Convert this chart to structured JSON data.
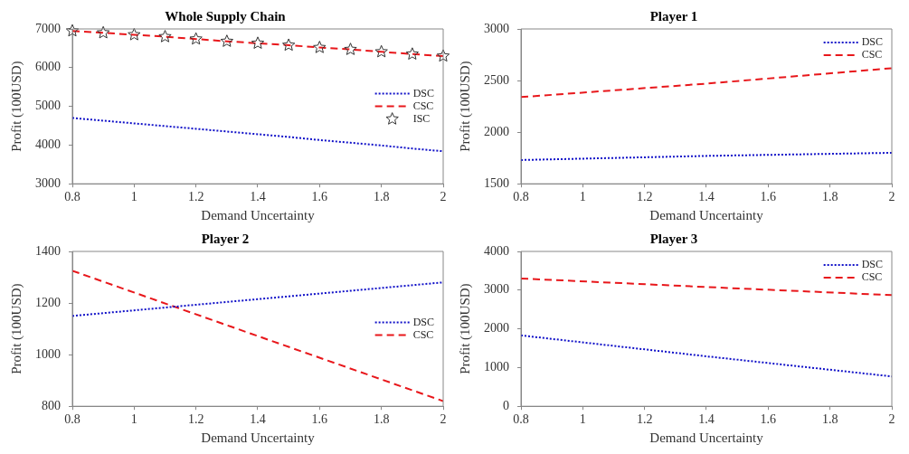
{
  "chart_data": [
    {
      "type": "line",
      "title": "Whole Supply Chain",
      "xlabel": "Demand Uncertainty",
      "ylabel": "Profit (100USD)",
      "x": [
        0.8,
        0.9,
        1.0,
        1.1,
        1.2,
        1.3,
        1.4,
        1.5,
        1.6,
        1.7,
        1.8,
        1.9,
        2.0
      ],
      "xlim": [
        0.8,
        2
      ],
      "xticks": [
        0.8,
        1,
        1.2,
        1.4,
        1.6,
        1.8,
        2
      ],
      "ylim": [
        3000,
        7000
      ],
      "yticks": [
        3000,
        4000,
        5000,
        6000,
        7000
      ],
      "legend": "right",
      "grid": false,
      "series": [
        {
          "name": "DSC",
          "color": "#1010c8",
          "line_style": "dotted",
          "marker": "none",
          "values": [
            4700,
            4630,
            4560,
            4490,
            4420,
            4350,
            4280,
            4210,
            4130,
            4060,
            3990,
            3910,
            3840
          ]
        },
        {
          "name": "CSC",
          "color": "#e8171b",
          "line_style": "dashed",
          "marker": "none",
          "values": [
            6950,
            6900,
            6850,
            6800,
            6740,
            6680,
            6630,
            6580,
            6520,
            6470,
            6410,
            6350,
            6300
          ]
        },
        {
          "name": "ISC",
          "type": "scatter",
          "color": "#333333",
          "marker": "star",
          "values": [
            6950,
            6900,
            6850,
            6800,
            6740,
            6680,
            6630,
            6580,
            6520,
            6470,
            6410,
            6350,
            6300
          ]
        }
      ]
    },
    {
      "type": "line",
      "title": "Player 1",
      "xlabel": "Demand Uncertainty",
      "ylabel": "Profit (100USD)",
      "x": [
        0.8,
        1.4,
        2.0
      ],
      "xlim": [
        0.8,
        2
      ],
      "xticks": [
        0.8,
        1,
        1.2,
        1.4,
        1.6,
        1.8,
        2
      ],
      "ylim": [
        1500,
        3000
      ],
      "yticks": [
        1500,
        2000,
        2500,
        3000
      ],
      "legend": "top right",
      "grid": false,
      "series": [
        {
          "name": "DSC",
          "color": "#1010c8",
          "line_style": "dotted",
          "marker": "none",
          "values": [
            1730,
            1770,
            1800
          ]
        },
        {
          "name": "CSC",
          "color": "#e8171b",
          "line_style": "dashed",
          "marker": "none",
          "values": [
            2340,
            2470,
            2620
          ]
        }
      ]
    },
    {
      "type": "line",
      "title": "Player 2",
      "xlabel": "Demand Uncertainty",
      "ylabel": "Profit (100USD)",
      "x": [
        0.8,
        1.4,
        2.0
      ],
      "xlim": [
        0.8,
        2
      ],
      "xticks": [
        0.8,
        1,
        1.2,
        1.4,
        1.6,
        1.8,
        2
      ],
      "ylim": [
        800,
        1400
      ],
      "yticks": [
        800,
        1000,
        1200,
        1400
      ],
      "legend": "right",
      "grid": false,
      "series": [
        {
          "name": "DSC",
          "color": "#1010c8",
          "line_style": "dotted",
          "marker": "none",
          "values": [
            1150,
            1215,
            1280
          ]
        },
        {
          "name": "CSC",
          "color": "#e8171b",
          "line_style": "dashed",
          "marker": "none",
          "values": [
            1325,
            1072,
            820
          ]
        }
      ]
    },
    {
      "type": "line",
      "title": "Player 3",
      "xlabel": "Demand Uncertainty",
      "ylabel": "Profit (100USD)",
      "x": [
        0.8,
        1.4,
        2.0
      ],
      "xlim": [
        0.8,
        2
      ],
      "xticks": [
        0.8,
        1,
        1.2,
        1.4,
        1.6,
        1.8,
        2
      ],
      "ylim": [
        0,
        4000
      ],
      "yticks": [
        0,
        1000,
        2000,
        3000,
        4000
      ],
      "legend": "top right",
      "grid": false,
      "series": [
        {
          "name": "DSC",
          "color": "#1010c8",
          "line_style": "dotted",
          "marker": "none",
          "values": [
            1830,
            1290,
            770
          ]
        },
        {
          "name": "CSC",
          "color": "#e8171b",
          "line_style": "dashed",
          "marker": "none",
          "values": [
            3300,
            3080,
            2870
          ]
        }
      ]
    }
  ]
}
